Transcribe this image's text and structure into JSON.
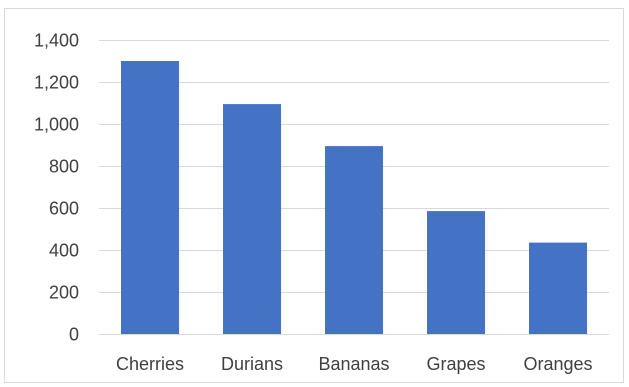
{
  "chart_data": {
    "type": "bar",
    "title": "",
    "xlabel": "",
    "ylabel": "",
    "categories": [
      "Cherries",
      "Durians",
      "Bananas",
      "Grapes",
      "Oranges"
    ],
    "values": [
      1300,
      1095,
      895,
      585,
      435
    ],
    "ylim": [
      0,
      1400
    ],
    "yticks": [
      0,
      200,
      400,
      600,
      800,
      1000,
      1200,
      1400
    ],
    "ytick_labels": [
      "0",
      "200",
      "400",
      "600",
      "800",
      "1,000",
      "1,200",
      "1,400"
    ],
    "bar_color": "#4472c4",
    "grid": true,
    "legend": "none"
  }
}
